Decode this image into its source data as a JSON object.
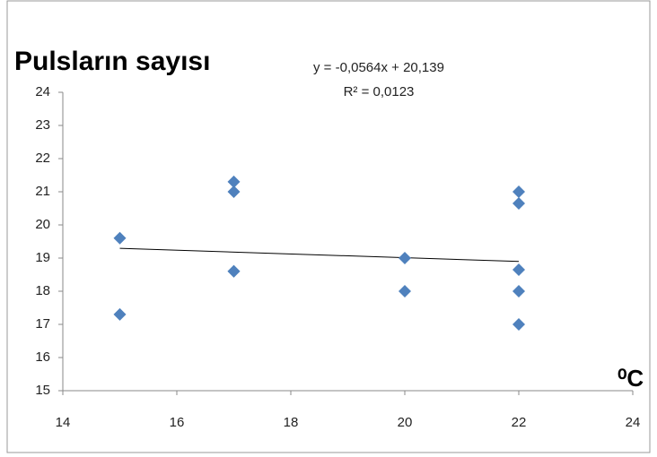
{
  "chart_data": {
    "type": "scatter",
    "title": "Pulsların sayısı",
    "x_label": "⁰C",
    "x": [
      15,
      15,
      17,
      17,
      17,
      17,
      20,
      20,
      22,
      22,
      22,
      22,
      22
    ],
    "values": [
      19.6,
      17.3,
      21.3,
      21.0,
      18.6,
      18.6,
      19.0,
      18.0,
      21.0,
      20.65,
      18.65,
      18.0,
      17.0
    ],
    "color": "#4f81bd",
    "trendline": {
      "slope": -0.0564,
      "intercept": 20.139,
      "label": "y = -0,0564x + 20,139",
      "r2_label": "R² = 0,0123"
    },
    "xlim": [
      14,
      24
    ],
    "xticks": [
      14,
      16,
      18,
      20,
      22,
      24
    ],
    "ylim": [
      15,
      24
    ],
    "yticks": [
      15,
      16,
      17,
      18,
      19,
      20,
      21,
      22,
      23,
      24
    ],
    "grid": false
  }
}
